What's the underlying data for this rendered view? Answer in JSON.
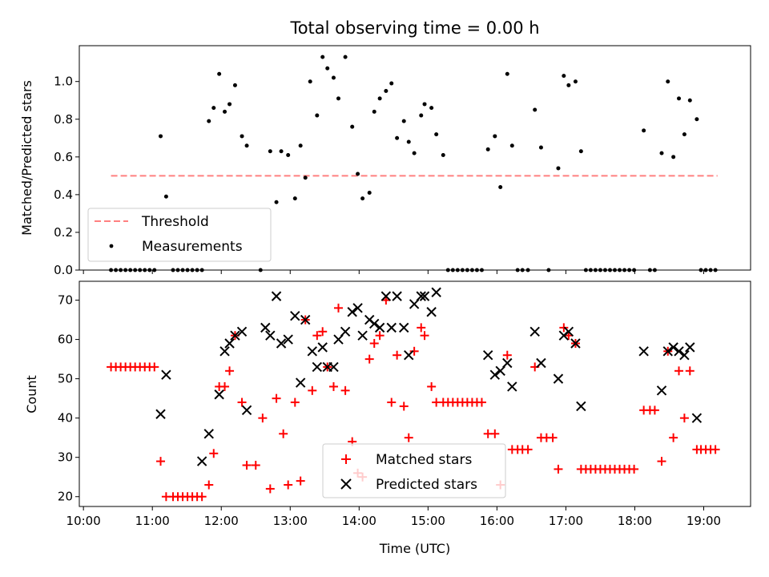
{
  "chart_data": [
    {
      "type": "scatter",
      "title": "Total observing time = 0.00 h",
      "xlabel": "",
      "ylabel": "Matched/Predicted stars",
      "xlim": [
        9.94,
        19.68
      ],
      "ylim": [
        0.0,
        1.19
      ],
      "yticks": [
        0.0,
        0.2,
        0.4,
        0.6,
        0.8,
        1.0
      ],
      "ytick_labels": [
        "0.0",
        "0.2",
        "0.4",
        "0.6",
        "0.8",
        "1.0"
      ],
      "xticks": [
        10,
        11,
        12,
        13,
        14,
        15,
        16,
        17,
        18,
        19
      ],
      "legend_position": "lower-left",
      "series": [
        {
          "name": "Threshold",
          "kind": "line",
          "color": "#ff8080",
          "style": "dashed",
          "x": [
            10.4,
            19.2
          ],
          "y": [
            0.5,
            0.5
          ]
        },
        {
          "name": "Measurements",
          "kind": "scatter",
          "color": "#000000",
          "marker": "dot",
          "x": [
            10.4,
            10.47,
            10.54,
            10.61,
            10.68,
            10.75,
            10.82,
            10.89,
            10.96,
            11.03,
            11.12,
            11.2,
            11.3,
            11.37,
            11.44,
            11.51,
            11.58,
            11.65,
            11.72,
            11.82,
            11.89,
            11.97,
            12.05,
            12.12,
            12.2,
            12.3,
            12.37,
            12.57,
            12.71,
            12.8,
            12.87,
            12.97,
            13.07,
            13.15,
            13.22,
            13.29,
            13.39,
            13.47,
            13.54,
            13.63,
            13.7,
            13.8,
            13.9,
            13.98,
            14.05,
            14.15,
            14.22,
            14.3,
            14.39,
            14.47,
            14.55,
            14.65,
            14.72,
            14.8,
            14.9,
            14.95,
            15.05,
            15.12,
            15.22,
            15.29,
            15.36,
            15.43,
            15.5,
            15.57,
            15.64,
            15.71,
            15.78,
            15.87,
            15.97,
            16.05,
            16.15,
            16.22,
            16.3,
            16.37,
            16.45,
            16.55,
            16.64,
            16.75,
            16.89,
            16.97,
            17.04,
            17.14,
            17.22,
            17.29,
            17.36,
            17.43,
            17.5,
            17.57,
            17.64,
            17.71,
            17.78,
            17.85,
            17.92,
            17.99,
            18.13,
            18.22,
            18.29,
            18.39,
            18.48,
            18.56,
            18.64,
            18.72,
            18.8,
            18.9,
            18.96,
            19.03,
            19.1,
            19.17
          ],
          "y": [
            0.0,
            0.0,
            0.0,
            0.0,
            0.0,
            0.0,
            0.0,
            0.0,
            0.0,
            0.0,
            0.71,
            0.39,
            0.0,
            0.0,
            0.0,
            0.0,
            0.0,
            0.0,
            0.0,
            0.79,
            0.86,
            1.04,
            0.84,
            0.88,
            0.98,
            0.71,
            0.66,
            0.0,
            0.63,
            0.36,
            0.63,
            0.61,
            0.38,
            0.66,
            0.49,
            1.0,
            0.82,
            1.13,
            1.07,
            1.02,
            0.91,
            1.13,
            0.76,
            0.51,
            0.38,
            0.41,
            0.84,
            0.91,
            0.95,
            0.99,
            0.7,
            0.79,
            0.68,
            0.62,
            0.82,
            0.88,
            0.86,
            0.72,
            0.61,
            0.0,
            0.0,
            0.0,
            0.0,
            0.0,
            0.0,
            0.0,
            0.0,
            0.64,
            0.71,
            0.44,
            1.04,
            0.66,
            0.0,
            0.0,
            0.0,
            0.85,
            0.65,
            0.0,
            0.54,
            1.03,
            0.98,
            1.0,
            0.63,
            0.0,
            0.0,
            0.0,
            0.0,
            0.0,
            0.0,
            0.0,
            0.0,
            0.0,
            0.0,
            0.0,
            0.74,
            0.0,
            0.0,
            0.62,
            1.0,
            0.6,
            0.91,
            0.72,
            0.9,
            0.8,
            0.0,
            0.0,
            0.0,
            0.0
          ]
        }
      ]
    },
    {
      "type": "scatter",
      "title": "",
      "xlabel": "Time (UTC)",
      "ylabel": "Count",
      "xlim": [
        9.94,
        19.68
      ],
      "ylim": [
        17.5,
        74.8
      ],
      "yticks": [
        20,
        30,
        40,
        50,
        60,
        70
      ],
      "ytick_labels": [
        "20",
        "30",
        "40",
        "50",
        "60",
        "70"
      ],
      "xticks": [
        10,
        11,
        12,
        13,
        14,
        15,
        16,
        17,
        18,
        19
      ],
      "xtick_labels": [
        "10:00",
        "11:00",
        "12:00",
        "13:00",
        "14:00",
        "15:00",
        "16:00",
        "17:00",
        "18:00",
        "19:00"
      ],
      "legend_position": "lower-center",
      "series": [
        {
          "name": "Matched stars",
          "kind": "scatter",
          "color": "#ff0000",
          "marker": "plus",
          "x": [
            10.4,
            10.47,
            10.54,
            10.61,
            10.68,
            10.75,
            10.82,
            10.89,
            10.96,
            11.03,
            11.12,
            11.2,
            11.3,
            11.37,
            11.44,
            11.51,
            11.58,
            11.65,
            11.72,
            11.82,
            11.89,
            11.97,
            12.05,
            12.12,
            12.2,
            12.3,
            12.37,
            12.5,
            12.6,
            12.71,
            12.8,
            12.9,
            12.97,
            13.07,
            13.15,
            13.22,
            13.32,
            13.39,
            13.47,
            13.54,
            13.63,
            13.7,
            13.8,
            13.9,
            13.98,
            14.05,
            14.15,
            14.22,
            14.3,
            14.39,
            14.47,
            14.55,
            14.65,
            14.72,
            14.8,
            14.9,
            14.95,
            15.05,
            15.12,
            15.22,
            15.29,
            15.36,
            15.43,
            15.5,
            15.57,
            15.64,
            15.71,
            15.78,
            15.87,
            15.97,
            16.05,
            16.15,
            16.22,
            16.3,
            16.37,
            16.45,
            16.55,
            16.64,
            16.72,
            16.81,
            16.89,
            16.97,
            17.04,
            17.14,
            17.22,
            17.29,
            17.36,
            17.43,
            17.5,
            17.57,
            17.64,
            17.71,
            17.78,
            17.85,
            17.92,
            17.99,
            18.13,
            18.22,
            18.29,
            18.39,
            18.48,
            18.56,
            18.64,
            18.72,
            18.8,
            18.9,
            18.96,
            19.03,
            19.1,
            19.17
          ],
          "y": [
            53,
            53,
            53,
            53,
            53,
            53,
            53,
            53,
            53,
            53,
            29,
            20,
            20,
            20,
            20,
            20,
            20,
            20,
            20,
            23,
            31,
            48,
            48,
            52,
            61,
            44,
            28,
            28,
            40,
            22,
            45,
            36,
            23,
            44,
            24,
            65,
            47,
            61,
            62,
            53,
            48,
            68,
            47,
            34,
            26,
            25,
            55,
            59,
            61,
            70,
            44,
            56,
            43,
            35,
            57,
            63,
            61,
            48,
            44,
            44,
            44,
            44,
            44,
            44,
            44,
            44,
            44,
            44,
            36,
            36,
            23,
            56,
            32,
            32,
            32,
            32,
            53,
            35,
            35,
            35,
            27,
            63,
            61,
            59,
            27,
            27,
            27,
            27,
            27,
            27,
            27,
            27,
            27,
            27,
            27,
            27,
            42,
            42,
            42,
            29,
            57,
            35,
            52,
            40,
            52,
            32,
            32,
            32,
            32,
            32
          ]
        },
        {
          "name": "Predicted stars",
          "kind": "scatter",
          "color": "#000000",
          "marker": "x",
          "x": [
            11.12,
            11.2,
            11.72,
            11.82,
            11.97,
            12.05,
            12.12,
            12.2,
            12.3,
            12.37,
            12.64,
            12.71,
            12.8,
            12.87,
            12.97,
            13.07,
            13.15,
            13.22,
            13.32,
            13.39,
            13.47,
            13.54,
            13.63,
            13.7,
            13.8,
            13.9,
            13.98,
            14.05,
            14.15,
            14.22,
            14.3,
            14.39,
            14.47,
            14.55,
            14.65,
            14.72,
            14.8,
            14.9,
            14.95,
            15.05,
            15.12,
            15.87,
            15.97,
            16.05,
            16.15,
            16.22,
            16.55,
            16.64,
            16.89,
            16.97,
            17.04,
            17.14,
            17.22,
            18.13,
            18.39,
            18.48,
            18.56,
            18.64,
            18.72,
            18.8,
            18.9
          ],
          "y": [
            41,
            51,
            29,
            36,
            46,
            57,
            59,
            61,
            62,
            42,
            63,
            61,
            71,
            59,
            60,
            66,
            49,
            65,
            57,
            53,
            58,
            53,
            53,
            60,
            62,
            67,
            68,
            61,
            65,
            64,
            63,
            71,
            63,
            71,
            63,
            56,
            69,
            71,
            71,
            67,
            72,
            56,
            51,
            52,
            54,
            48,
            62,
            54,
            50,
            61,
            62,
            59,
            43,
            57,
            47,
            57,
            58,
            57,
            56,
            58,
            40
          ]
        }
      ]
    }
  ]
}
